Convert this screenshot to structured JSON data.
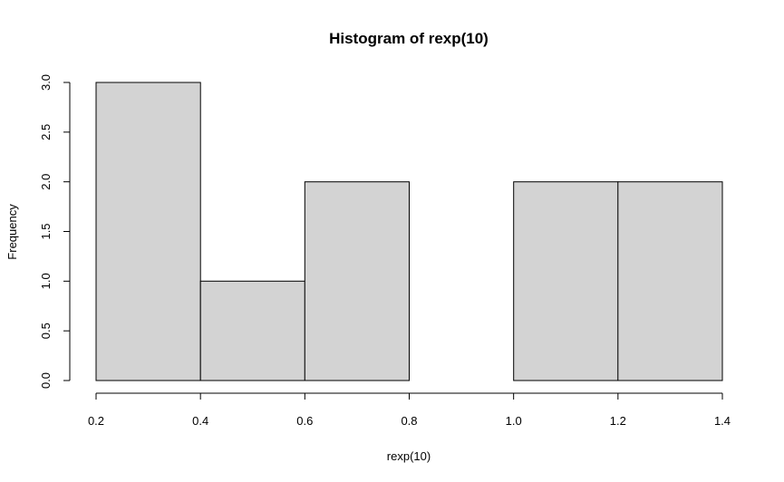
{
  "chart_data": {
    "type": "bar",
    "title": "Histogram of rexp(10)",
    "xlabel": "rexp(10)",
    "ylabel": "Frequency",
    "bin_edges": [
      0.2,
      0.4,
      0.6,
      0.8,
      1.0,
      1.2,
      1.4
    ],
    "values": [
      3,
      1,
      2,
      0,
      2,
      2
    ],
    "xlim": [
      0.2,
      1.4
    ],
    "ylim": [
      0,
      3
    ],
    "x_ticks": [
      "0.2",
      "0.4",
      "0.6",
      "0.8",
      "1.0",
      "1.2",
      "1.4"
    ],
    "y_ticks": [
      "0.0",
      "0.5",
      "1.0",
      "1.5",
      "2.0",
      "2.5",
      "3.0"
    ],
    "grid": false,
    "bar_color": "#d3d3d3",
    "edge_color": "#000000"
  }
}
